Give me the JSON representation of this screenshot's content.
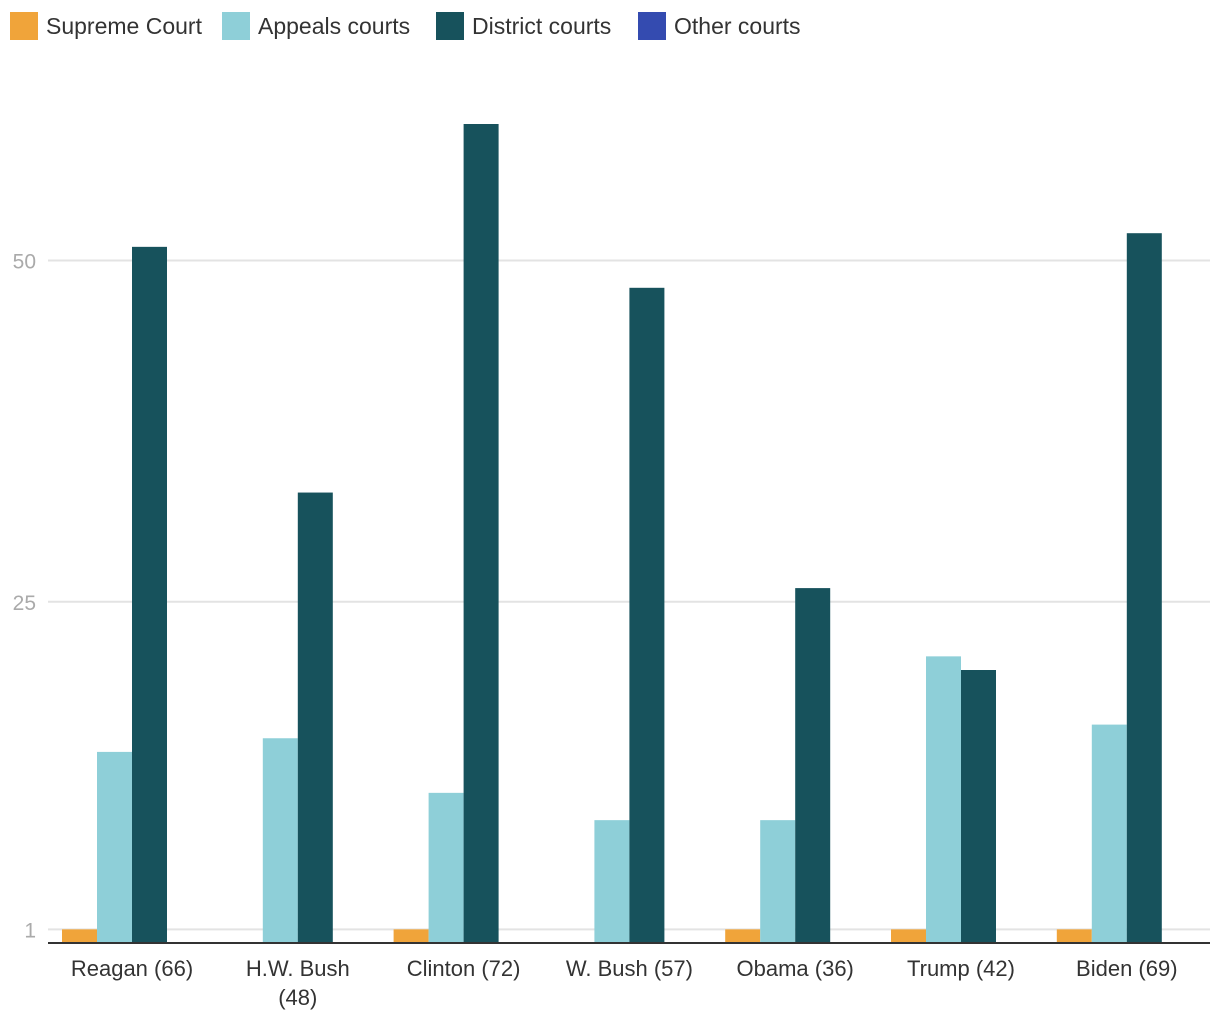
{
  "chart_data": {
    "type": "bar",
    "title": "",
    "xlabel": "",
    "ylabel": "",
    "categories": [
      [
        "Reagan (66)"
      ],
      [
        "H.W. Bush",
        "(48)"
      ],
      [
        "Clinton (72)"
      ],
      [
        "W. Bush (57)"
      ],
      [
        "Obama (36)"
      ],
      [
        "Trump (42)"
      ],
      [
        "Biden (69)"
      ]
    ],
    "series": [
      {
        "name": "Supreme Court",
        "color": "#f0a43a",
        "values": [
          1,
          0,
          1,
          0,
          1,
          1,
          1
        ]
      },
      {
        "name": "Appeals courts",
        "color": "#8ecfd8",
        "values": [
          14,
          15,
          11,
          9,
          9,
          21,
          16
        ]
      },
      {
        "name": "District courts",
        "color": "#17525c",
        "values": [
          51,
          33,
          60,
          48,
          26,
          20,
          52
        ]
      },
      {
        "name": "Other courts",
        "color": "#344bb0",
        "values": [
          0,
          0,
          0,
          0,
          0,
          0,
          0
        ]
      }
    ],
    "yticks": [
      1,
      25,
      50
    ],
    "ylim": [
      0,
      60
    ],
    "grid": true,
    "legend_position": "top-left"
  }
}
